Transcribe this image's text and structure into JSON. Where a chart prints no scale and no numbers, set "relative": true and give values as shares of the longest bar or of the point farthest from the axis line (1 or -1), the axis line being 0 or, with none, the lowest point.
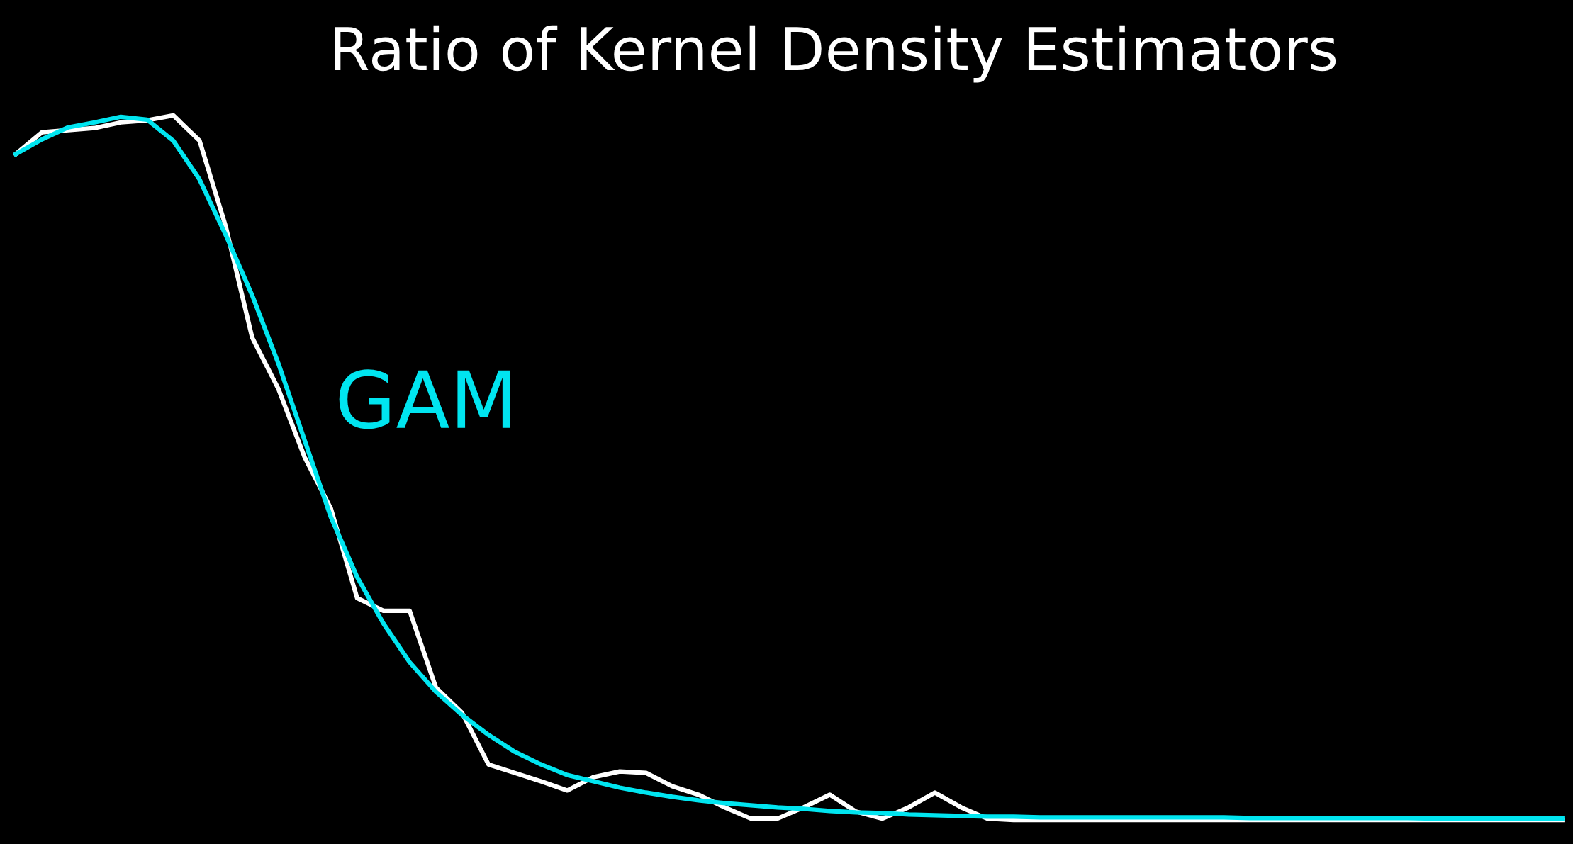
{
  "chart_data": {
    "type": "line",
    "title": "Ratio of Kernel Density Estimators",
    "relative": true,
    "legend": false,
    "grid": false,
    "marker": "none",
    "line_style": "solid",
    "categories": [
      null,
      null,
      null,
      null,
      null,
      null,
      null,
      null,
      null,
      null,
      null,
      null,
      null,
      null,
      null,
      null,
      null,
      null,
      null,
      null,
      null,
      null,
      null,
      null,
      null,
      null,
      null,
      null,
      null,
      null,
      null,
      null,
      null,
      null,
      null,
      null,
      null,
      null,
      null,
      null,
      null,
      null,
      null,
      null,
      null,
      null,
      null,
      null,
      null,
      null,
      null,
      null,
      null,
      null,
      null,
      null,
      null,
      null,
      null,
      null
    ],
    "series": [
      {
        "color": "#ffffff",
        "values": [
          0.945,
          0.976,
          0.979,
          0.982,
          0.99,
          0.993,
          1,
          0.964,
          0.842,
          0.685,
          0.612,
          0.515,
          0.442,
          0.315,
          0.297,
          0.297,
          0.188,
          0.152,
          0.079,
          0.067,
          0.055,
          0.042,
          0.061,
          0.069,
          0.067,
          0.048,
          0.036,
          0.018,
          0.002,
          0.002,
          0.018,
          0.036,
          0.012,
          0.002,
          0.018,
          0.039,
          0.018,
          0.002,
          0,
          0,
          0,
          0,
          0,
          0,
          0,
          0,
          0,
          0,
          0,
          0,
          0,
          0,
          0,
          0,
          0,
          0,
          0,
          0,
          0,
          0
        ]
      },
      {
        "name": "GAM",
        "color": "#00e5f0",
        "values": [
          0.945,
          0.966,
          0.983,
          0.99,
          0.998,
          0.994,
          0.964,
          0.909,
          0.83,
          0.745,
          0.648,
          0.539,
          0.43,
          0.345,
          0.279,
          0.224,
          0.182,
          0.149,
          0.121,
          0.097,
          0.079,
          0.064,
          0.055,
          0.046,
          0.039,
          0.033,
          0.028,
          0.024,
          0.021,
          0.018,
          0.016,
          0.013,
          0.011,
          0.01,
          0.008,
          0.007,
          0.006,
          0.005,
          0.005,
          0.004,
          0.004,
          0.004,
          0.004,
          0.004,
          0.004,
          0.004,
          0.004,
          0.003,
          0.003,
          0.003,
          0.003,
          0.003,
          0.003,
          0.003,
          0.002,
          0.002,
          0.002,
          0.002,
          0.002,
          0.002
        ]
      }
    ]
  }
}
